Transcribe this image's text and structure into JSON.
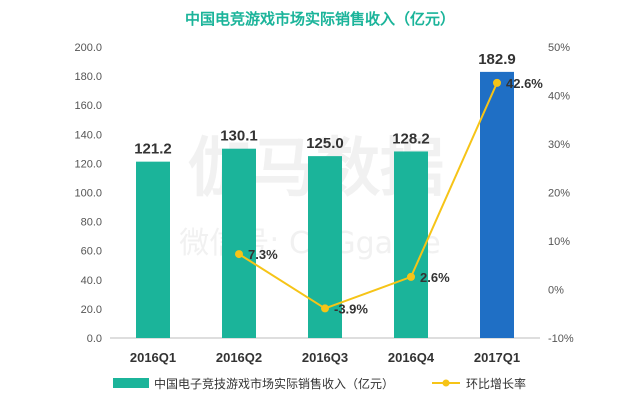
{
  "watermark": {
    "brand": "伽马数据",
    "wechat": "微信号: CNGgame"
  },
  "chart_data": {
    "type": "bar",
    "title": "中国电竞游戏市场实际销售收入（亿元）",
    "categories": [
      "2016Q1",
      "2016Q2",
      "2016Q3",
      "2016Q4",
      "2017Q1"
    ],
    "series": [
      {
        "name": "中国电子竞技游戏市场实际销售收入（亿元）",
        "type": "bar",
        "axis": "left",
        "values": [
          121.2,
          130.1,
          125.0,
          128.2,
          182.9
        ],
        "labels": [
          "121.2",
          "130.1",
          "125.0",
          "128.2",
          "182.9"
        ],
        "colors": [
          "#1bb49a",
          "#1bb49a",
          "#1bb49a",
          "#1bb49a",
          "#1f6fc5"
        ]
      },
      {
        "name": "环比增长率",
        "type": "line",
        "axis": "right",
        "values": [
          null,
          7.3,
          -3.9,
          2.6,
          42.6
        ],
        "labels": [
          "",
          "7.3%",
          "-3.9%",
          "2.6%",
          "42.6%"
        ],
        "color": "#f6c417"
      }
    ],
    "y_left": {
      "min": 0,
      "max": 200,
      "step": 20,
      "tick_labels": [
        "0.0",
        "20.0",
        "40.0",
        "60.0",
        "80.0",
        "100.0",
        "120.0",
        "140.0",
        "160.0",
        "180.0",
        "200.0"
      ]
    },
    "y_right": {
      "min": -10,
      "max": 50,
      "step": 10,
      "tick_labels": [
        "-10%",
        "0%",
        "10%",
        "20%",
        "30%",
        "40%",
        "50%"
      ]
    },
    "grid": false,
    "legend_position": "bottom"
  }
}
